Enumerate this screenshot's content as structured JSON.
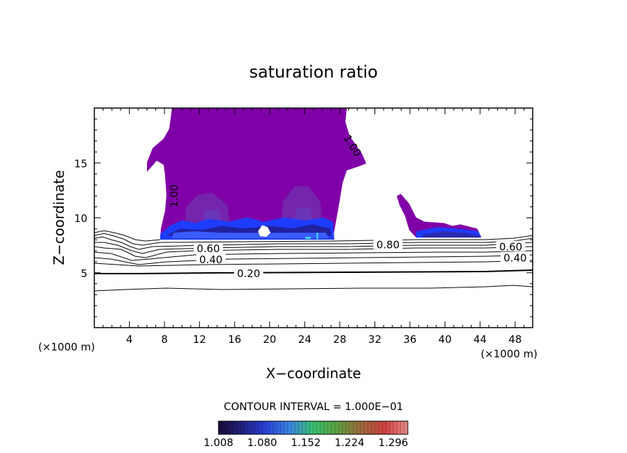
{
  "chart_data": {
    "type": "contour",
    "title": "saturation ratio",
    "xlabel": "X−coordinate",
    "ylabel": "Z−coordinate",
    "x_unit_left": "(×1000 m)",
    "x_unit_right": "(×1000 m)",
    "x_ticks": [
      4,
      8,
      12,
      16,
      20,
      24,
      28,
      32,
      36,
      40,
      44,
      48
    ],
    "y_ticks": [
      5,
      10,
      15
    ],
    "xlim": [
      0,
      50
    ],
    "ylim": [
      0,
      20
    ],
    "contour_interval_text": "CONTOUR INTERVAL = 1.000E−01",
    "colorbar_ticks": [
      "1.008",
      "1.080",
      "1.152",
      "1.224",
      "1.296"
    ],
    "colorbar_range": [
      1.008,
      1.32
    ],
    "contour_labels": [
      {
        "text": "1.00",
        "x": 29.5,
        "y": 16.6,
        "rotate": 58
      },
      {
        "text": "1.00",
        "x": 9.0,
        "y": 12.0,
        "rotate": -90
      },
      {
        "text": "0.60",
        "x": 13.0,
        "y": 7.25,
        "rotate": 0
      },
      {
        "text": "0.40",
        "x": 13.3,
        "y": 6.25,
        "rotate": 0
      },
      {
        "text": "0.20",
        "x": 17.6,
        "y": 5.0,
        "rotate": 0
      },
      {
        "text": "0.80",
        "x": 33.5,
        "y": 7.6,
        "rotate": 0
      },
      {
        "text": "0.60",
        "x": 47.5,
        "y": 7.4,
        "rotate": 0
      },
      {
        "text": "0.40",
        "x": 48.0,
        "y": 6.4,
        "rotate": 0
      }
    ],
    "colors": {
      "saturated_fill": "#8000a8",
      "inner_fill": "#7a2ab0",
      "base_blue": "#1e3cff",
      "contour_line": "#000000"
    }
  }
}
